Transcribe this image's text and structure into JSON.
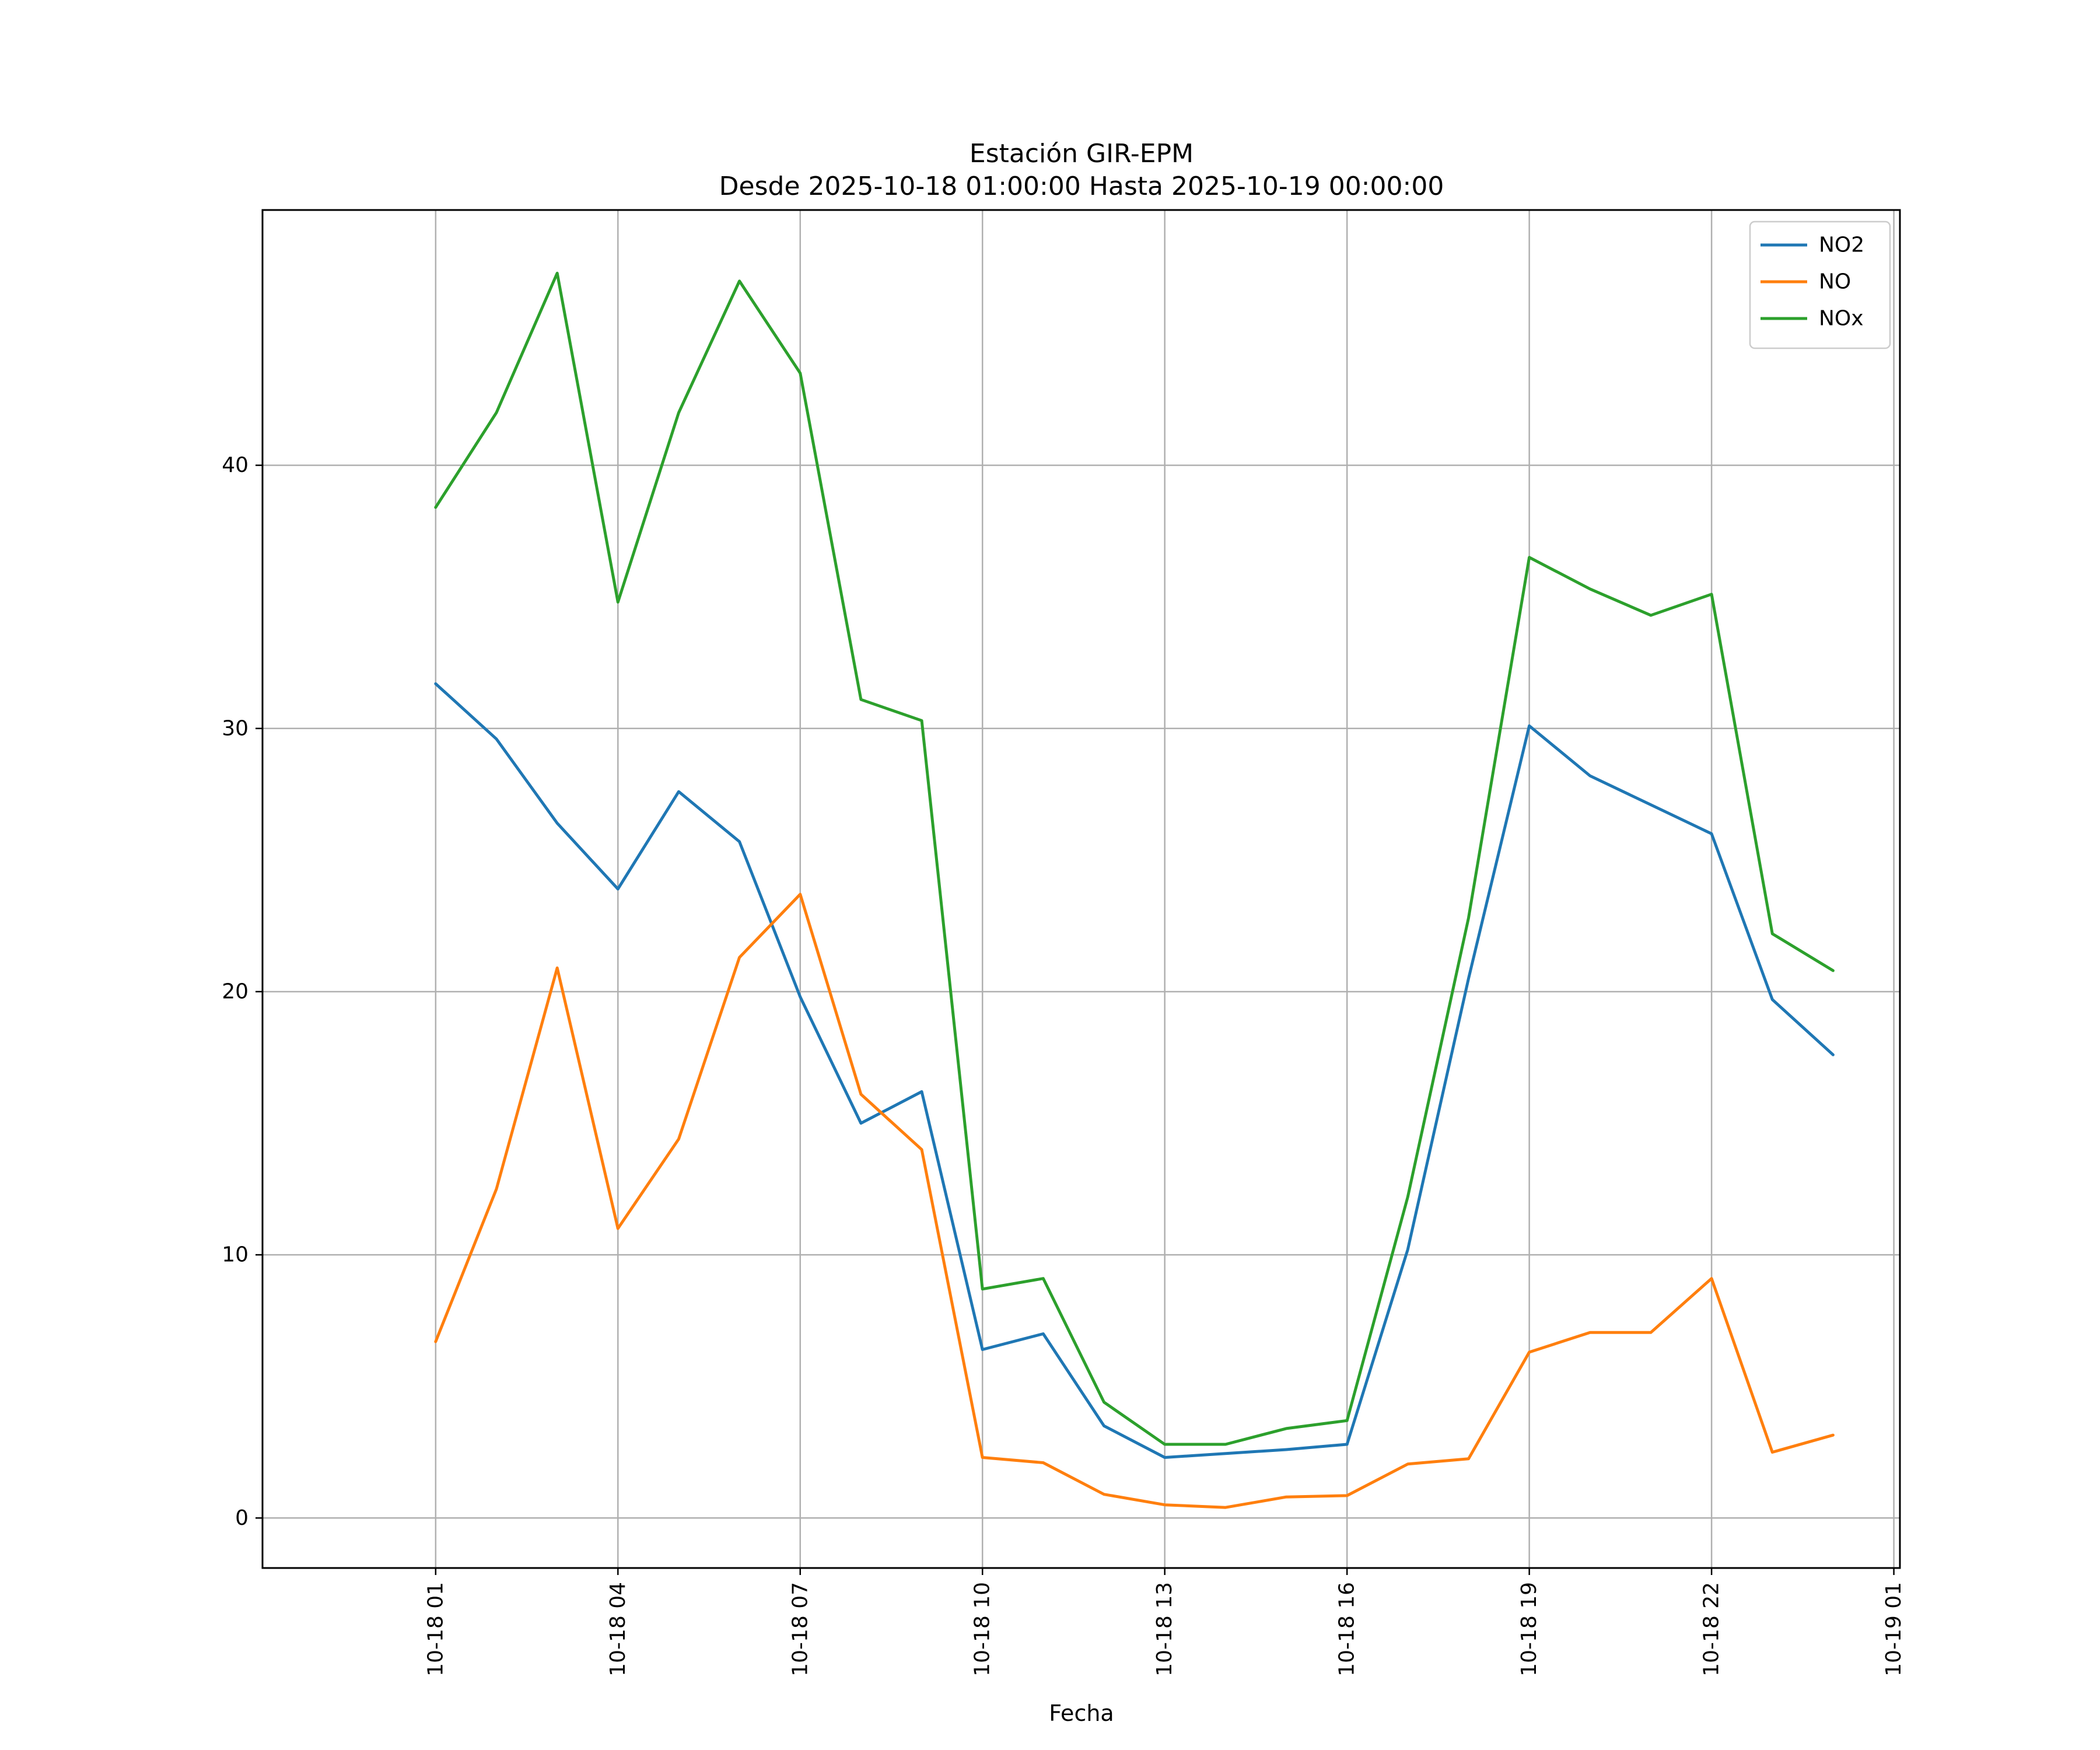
{
  "chart_data": {
    "type": "line",
    "title": "Estación GIR-EPM",
    "subtitle": "Desde 2025-10-18 01:00:00 Hasta 2025-10-19 00:00:00",
    "xlabel": "Fecha",
    "ylabel": "",
    "x": [
      "2025-10-18 01:00",
      "2025-10-18 02:00",
      "2025-10-18 03:00",
      "2025-10-18 04:00",
      "2025-10-18 05:00",
      "2025-10-18 06:00",
      "2025-10-18 07:00",
      "2025-10-18 08:00",
      "2025-10-18 09:00",
      "2025-10-18 10:00",
      "2025-10-18 11:00",
      "2025-10-18 12:00",
      "2025-10-18 13:00",
      "2025-10-18 14:00",
      "2025-10-18 15:00",
      "2025-10-18 16:00",
      "2025-10-18 17:00",
      "2025-10-18 18:00",
      "2025-10-18 19:00",
      "2025-10-18 20:00",
      "2025-10-18 21:00",
      "2025-10-18 22:00",
      "2025-10-18 23:00",
      "2025-10-19 00:00"
    ],
    "x_ticks": [
      "2025-10-18 01:00",
      "2025-10-18 04:00",
      "2025-10-18 07:00",
      "2025-10-18 10:00",
      "2025-10-18 13:00",
      "2025-10-18 16:00",
      "2025-10-18 19:00",
      "2025-10-18 22:00",
      "2025-10-19 01:00"
    ],
    "x_tick_labels": [
      "10-18 01",
      "10-18 04",
      "10-18 07",
      "10-18 10",
      "10-18 13",
      "10-18 16",
      "10-18 19",
      "10-18 22",
      "10-19 01"
    ],
    "xlim": [
      "2025-10-17 22:09",
      "2025-10-19 01:06"
    ],
    "y_ticks": [
      0,
      10,
      20,
      30,
      40
    ],
    "ylim": [
      -1.9,
      49.7
    ],
    "grid": true,
    "legend_position": "top-right",
    "series": [
      {
        "name": "NO2",
        "color": "#1f77b4",
        "values": [
          31.7,
          29.6,
          26.4,
          23.9,
          27.6,
          25.7,
          19.8,
          15.0,
          16.2,
          6.4,
          7.0,
          3.5,
          2.3,
          2.45,
          2.6,
          2.8,
          10.2,
          20.5,
          30.1,
          28.2,
          27.1,
          26.0,
          19.7,
          17.6
        ]
      },
      {
        "name": "NO",
        "color": "#ff7f0e",
        "values": [
          6.7,
          12.5,
          20.9,
          11.0,
          14.4,
          21.3,
          23.7,
          16.1,
          14.0,
          2.3,
          2.1,
          0.9,
          0.5,
          0.4,
          0.8,
          0.85,
          2.05,
          2.25,
          6.3,
          7.05,
          7.05,
          9.1,
          2.5,
          3.15
        ]
      },
      {
        "name": "NOx",
        "color": "#2ca02c",
        "values": [
          38.4,
          42.0,
          47.3,
          34.8,
          42.0,
          47.0,
          43.5,
          31.1,
          30.3,
          8.7,
          9.1,
          4.4,
          2.8,
          2.8,
          3.4,
          3.7,
          12.2,
          22.8,
          36.5,
          35.3,
          34.3,
          35.1,
          22.2,
          20.8
        ]
      }
    ]
  }
}
